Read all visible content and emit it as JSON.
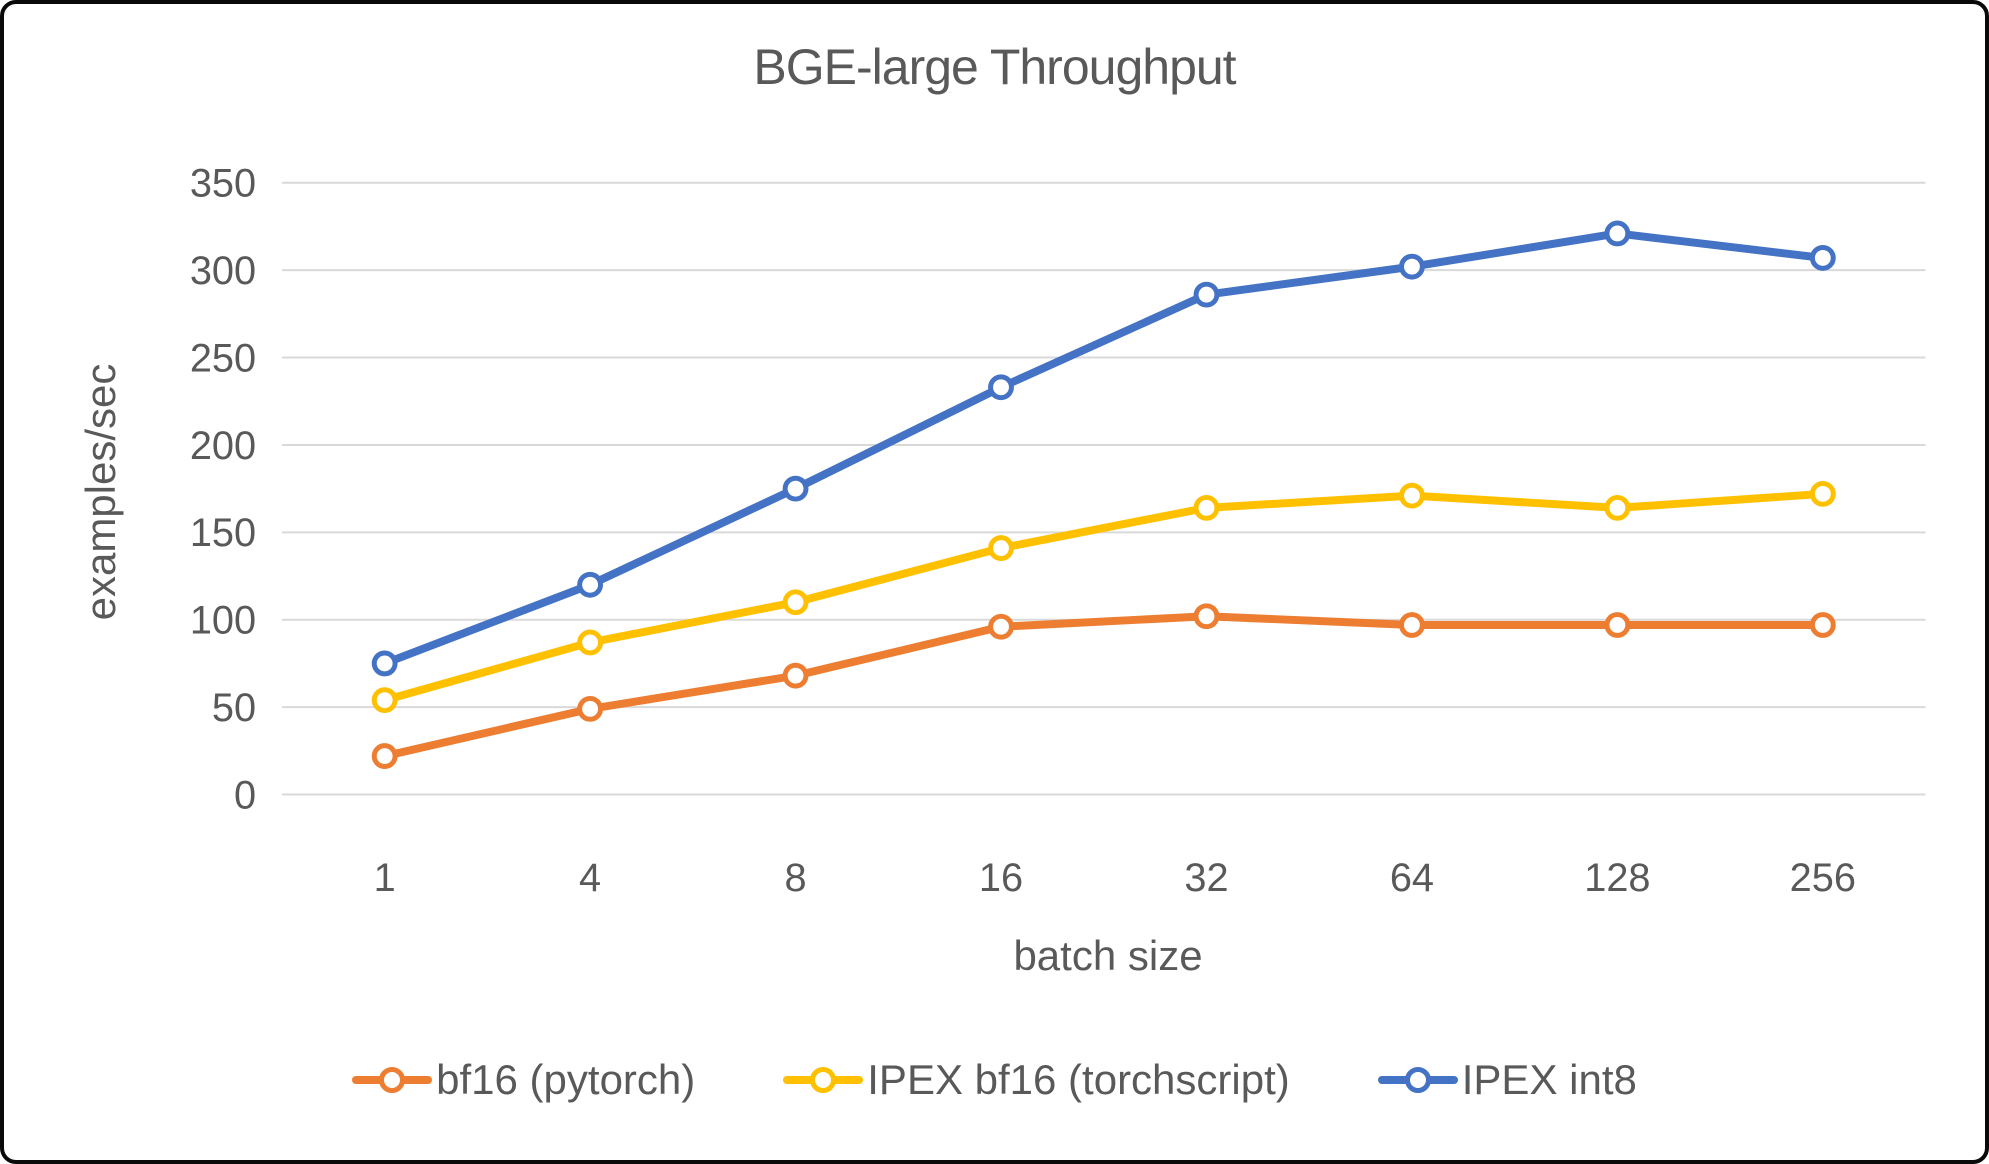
{
  "chart_data": {
    "type": "line",
    "title": "BGE-large Throughput",
    "xlabel": "batch size",
    "ylabel": "examples/sec",
    "categories": [
      "1",
      "4",
      "8",
      "16",
      "32",
      "64",
      "128",
      "256"
    ],
    "series": [
      {
        "name": "bf16 (pytorch)",
        "color": "#ED7D31",
        "values": [
          22,
          49,
          68,
          96,
          102,
          97,
          97,
          97
        ]
      },
      {
        "name": "IPEX bf16 (torchscript)",
        "color": "#FFC000",
        "values": [
          54,
          87,
          110,
          141,
          164,
          171,
          164,
          172
        ]
      },
      {
        "name": "IPEX int8",
        "color": "#4472C4",
        "values": [
          75,
          120,
          175,
          233,
          286,
          302,
          321,
          307
        ]
      }
    ],
    "y_ticks": [
      0,
      50,
      100,
      150,
      200,
      250,
      300,
      350
    ],
    "ylim": [
      0,
      350
    ],
    "grid": "horizontal",
    "legend_position": "bottom",
    "marker": "open-circle"
  },
  "style": {
    "text_color": "#595959",
    "gridline_color": "#D9D9D9",
    "background": "#FFFFFF",
    "border_color": "#0A0A0A"
  }
}
